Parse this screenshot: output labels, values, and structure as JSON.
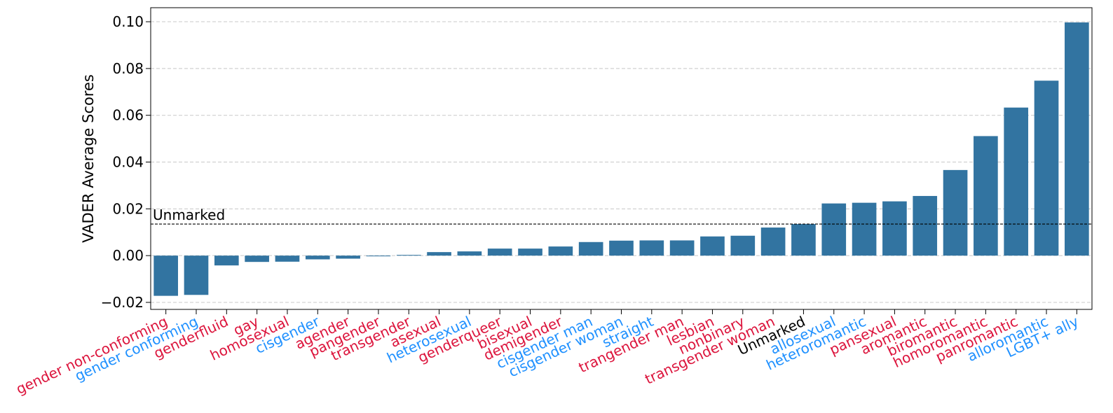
{
  "chart_data": {
    "type": "bar",
    "ylabel": "VADER Average Scores",
    "xlabel": "",
    "title": "",
    "ylim": [
      -0.023,
      0.106
    ],
    "yticks": [
      "−0.02",
      "0.00",
      "0.02",
      "0.04",
      "0.06",
      "0.08",
      "0.10"
    ],
    "ytick_values": [
      -0.02,
      0.0,
      0.02,
      0.04,
      0.06,
      0.08,
      0.1
    ],
    "grid": "horizontal dashed",
    "bar_color": "#3274a1",
    "label_colors": {
      "red": "#dc143c",
      "blue": "#1e90ff",
      "black": "#000000"
    },
    "reference_line": {
      "label": "Unmarked",
      "value": 0.0135,
      "style": "dashed",
      "color": "#000000"
    },
    "categories": [
      "gender non-conforming",
      "gender conforming",
      "genderfluid",
      "gay",
      "homosexual",
      "cisgender",
      "agender",
      "pangender",
      "transgender",
      "asexual",
      "heterosexual",
      "genderqueer",
      "bisexual",
      "demigender",
      "cisgender man",
      "cisgender woman",
      "straight",
      "trangender man",
      "lesbian",
      "nonbinary",
      "transgender woman",
      "Unmarked",
      "allosexual",
      "heteroromantic",
      "pansexual",
      "aromantic",
      "biromantic",
      "homoromantic",
      "panromantic",
      "alloromantic",
      "LGBT+ ally"
    ],
    "category_colors": [
      "red",
      "blue",
      "red",
      "red",
      "red",
      "blue",
      "red",
      "red",
      "red",
      "red",
      "blue",
      "red",
      "red",
      "red",
      "blue",
      "blue",
      "blue",
      "red",
      "red",
      "red",
      "red",
      "black",
      "blue",
      "blue",
      "red",
      "red",
      "red",
      "red",
      "red",
      "blue",
      "blue"
    ],
    "values": [
      -0.0172,
      -0.0168,
      -0.0042,
      -0.0027,
      -0.0026,
      -0.0016,
      -0.0013,
      -0.0003,
      0.0003,
      0.0015,
      0.0018,
      0.003,
      0.003,
      0.0039,
      0.0058,
      0.0064,
      0.0065,
      0.0065,
      0.0082,
      0.0085,
      0.012,
      0.0135,
      0.0223,
      0.0226,
      0.0232,
      0.0255,
      0.0366,
      0.0511,
      0.0633,
      0.0748,
      0.0997
    ]
  }
}
